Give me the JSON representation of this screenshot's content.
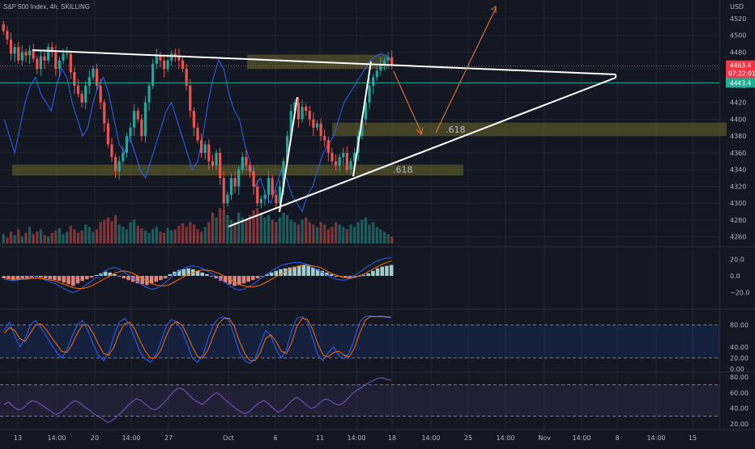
{
  "header": {
    "title": "S&P 500 Index, 4h, SKILLING"
  },
  "currency": "USD",
  "colors": {
    "background": "#131722",
    "up": "#26a69a",
    "down": "#ef5350",
    "price_tag": "#f23645",
    "level_line": "#22ab94",
    "zone": "#6b6a2c",
    "trendline": "#ffffff",
    "arrow": "#f57c37",
    "blue_line": "#2962ff"
  },
  "chart_data": [
    {
      "type": "candlestick",
      "panel": "price",
      "title": "S&P 500 Index, 4h, SKILLING",
      "x_tick_labels": [
        "13",
        "14:00",
        "20",
        "14:00",
        "27",
        "Oct",
        "6",
        "11",
        "14:00",
        "18",
        "14:00",
        "25",
        "14:00",
        "Nov",
        "14:00",
        "8",
        "14:00",
        "15"
      ],
      "y_ticks": [
        4520,
        4500,
        4480,
        4460,
        4440,
        4420,
        4400,
        4380,
        4360,
        4340,
        4320,
        4300,
        4280,
        4260
      ],
      "ylim": [
        4253,
        4542
      ],
      "closes": [
        4505,
        4495,
        4478,
        4486,
        4470,
        4480,
        4476,
        4482,
        4472,
        4460,
        4475,
        4470,
        4486,
        4480,
        4460,
        4470,
        4478,
        4478,
        4456,
        4440,
        4430,
        4420,
        4440,
        4450,
        4460,
        4440,
        4420,
        4395,
        4370,
        4355,
        4338,
        4350,
        4360,
        4380,
        4390,
        4410,
        4400,
        4380,
        4420,
        4440,
        4466,
        4476,
        4470,
        4460,
        4470,
        4478,
        4476,
        4470,
        4460,
        4440,
        4410,
        4390,
        4375,
        4360,
        4370,
        4350,
        4345,
        4360,
        4330,
        4300,
        4310,
        4330,
        4320,
        4340,
        4355,
        4345,
        4338,
        4320,
        4300,
        4305,
        4310,
        4330,
        4310,
        4300,
        4320,
        4350,
        4380,
        4410,
        4420,
        4400,
        4415,
        4410,
        4400,
        4390,
        4395,
        4380,
        4375,
        4360,
        4350,
        4345,
        4355,
        4360,
        4340,
        4350,
        4360,
        4380,
        4400,
        4420,
        4440,
        4450,
        4458,
        4466,
        4470,
        4474,
        4463.4
      ],
      "volume": [
        8,
        5,
        10,
        7,
        12,
        6,
        9,
        14,
        8,
        10,
        12,
        7,
        6,
        9,
        11,
        13,
        8,
        10,
        15,
        12,
        9,
        11,
        16,
        14,
        10,
        12,
        18,
        20,
        22,
        19,
        24,
        16,
        14,
        12,
        18,
        20,
        15,
        13,
        11,
        9,
        12,
        14,
        10,
        9,
        13,
        11,
        12,
        15,
        17,
        14,
        18,
        16,
        12,
        10,
        14,
        18,
        26,
        22,
        30,
        28,
        24,
        20,
        18,
        26,
        22,
        20,
        24,
        28,
        30,
        26,
        22,
        24,
        20,
        18,
        22,
        26,
        24,
        20,
        18,
        16,
        20,
        22,
        18,
        16,
        14,
        18,
        16,
        12,
        14,
        18,
        16,
        14,
        12,
        16,
        14,
        18,
        20,
        22,
        16,
        18,
        14,
        12,
        10,
        8,
        6
      ],
      "overlay_line": [
        4400,
        4380,
        4360,
        4390,
        4420,
        4440,
        4450,
        4430,
        4420,
        4410,
        4440,
        4460,
        4450,
        4420,
        4400,
        4380,
        4390,
        4420,
        4440,
        4450,
        4430,
        4400,
        4370,
        4360,
        4380,
        4360,
        4340,
        4330,
        4350,
        4370,
        4390,
        4410,
        4420,
        4400,
        4380,
        4360,
        4340,
        4350,
        4380,
        4420,
        4450,
        4470,
        4460,
        4430,
        4410,
        4400,
        4370,
        4350,
        4320,
        4330,
        4310,
        4300,
        4320,
        4340,
        4330,
        4310,
        4300,
        4290,
        4310,
        4320,
        4340,
        4360,
        4370,
        4380,
        4400,
        4420,
        4430,
        4440,
        4450,
        4460,
        4470,
        4475,
        4478,
        4476,
        4470
      ],
      "current_price": 4463.4,
      "countdown": "07:22:01",
      "level_price": 4443.4,
      "annotations": [
        ".618",
        ".618"
      ]
    },
    {
      "type": "histogram",
      "panel": "macd",
      "y_ticks": [
        "20.0",
        "0.0",
        "−20.0"
      ],
      "ylim": [
        -28,
        28
      ],
      "histogram": [
        -3,
        -4,
        -5,
        -4,
        -3,
        -4,
        -2,
        -1,
        -2,
        -3,
        -4,
        -5,
        -6,
        -8,
        -10,
        -12,
        -9,
        -6,
        -4,
        -2,
        1,
        3,
        5,
        4,
        2,
        -1,
        -3,
        -5,
        -7,
        -9,
        -10,
        -11,
        -9,
        -7,
        -5,
        -3,
        2,
        5,
        7,
        8,
        9,
        8,
        6,
        4,
        2,
        -1,
        -3,
        -6,
        -8,
        -10,
        -12,
        -11,
        -9,
        -7,
        -5,
        -3,
        -1,
        2,
        4,
        6,
        8,
        9,
        10,
        11,
        12,
        13,
        12,
        10,
        8,
        6,
        4,
        2,
        0,
        -1,
        -2,
        -3,
        -2,
        -1,
        1,
        3,
        6,
        9,
        11,
        12,
        13
      ],
      "macd": [
        -4,
        -5,
        -6,
        -5,
        -4,
        -3,
        -2,
        -2,
        -3,
        -5,
        -7,
        -9,
        -12,
        -15,
        -18,
        -20,
        -18,
        -14,
        -10,
        -6,
        -2,
        2,
        6,
        9,
        10,
        8,
        5,
        1,
        -3,
        -7,
        -11,
        -14,
        -16,
        -15,
        -12,
        -8,
        -3,
        2,
        6,
        9,
        11,
        12,
        11,
        9,
        6,
        3,
        0,
        -4,
        -8,
        -12,
        -15,
        -17,
        -16,
        -13,
        -10,
        -6,
        -2,
        2,
        6,
        9,
        12,
        14,
        15,
        16,
        16,
        15,
        13,
        10,
        7,
        4,
        1,
        -2,
        -4,
        -5,
        -5,
        -3,
        0,
        4,
        8,
        12,
        15,
        18,
        20,
        21,
        22
      ],
      "signal": [
        -2,
        -3,
        -4,
        -4,
        -4,
        -4,
        -3,
        -3,
        -3,
        -4,
        -5,
        -6,
        -8,
        -10,
        -12,
        -14,
        -15,
        -15,
        -14,
        -12,
        -9,
        -6,
        -3,
        0,
        3,
        5,
        6,
        5,
        3,
        0,
        -3,
        -6,
        -9,
        -11,
        -12,
        -12,
        -10,
        -7,
        -4,
        -1,
        2,
        4,
        6,
        7,
        7,
        6,
        4,
        2,
        -1,
        -4,
        -7,
        -10,
        -12,
        -13,
        -13,
        -12,
        -10,
        -7,
        -4,
        -1,
        2,
        5,
        8,
        10,
        12,
        13,
        13,
        12,
        11,
        9,
        6,
        3,
        1,
        -1,
        -2,
        -3,
        -2,
        0,
        2,
        5,
        8,
        11,
        14,
        16,
        18
      ]
    },
    {
      "type": "line",
      "panel": "stochastic",
      "y_ticks": [
        "80.00",
        "40.00",
        "20.00",
        "0.00"
      ],
      "ylim": [
        0,
        100
      ],
      "band": [
        20,
        80
      ],
      "k": [
        70,
        85,
        60,
        40,
        55,
        80,
        88,
        75,
        60,
        45,
        30,
        20,
        35,
        60,
        80,
        88,
        70,
        45,
        25,
        15,
        30,
        60,
        85,
        92,
        80,
        55,
        30,
        18,
        12,
        25,
        50,
        78,
        90,
        85,
        70,
        45,
        20,
        12,
        25,
        55,
        80,
        92,
        95,
        88,
        60,
        30,
        15,
        10,
        20,
        45,
        70,
        60,
        35,
        20,
        35,
        70,
        92,
        95,
        85,
        55,
        25,
        15,
        30,
        40,
        25,
        18,
        30,
        55,
        85,
        95,
        96,
        95,
        96,
        94,
        93
      ],
      "d": [
        65,
        75,
        70,
        55,
        50,
        65,
        80,
        82,
        72,
        58,
        45,
        32,
        30,
        45,
        65,
        80,
        80,
        65,
        45,
        28,
        25,
        40,
        65,
        82,
        85,
        72,
        50,
        32,
        20,
        20,
        35,
        60,
        80,
        86,
        80,
        62,
        40,
        22,
        20,
        35,
        60,
        82,
        92,
        92,
        78,
        50,
        28,
        15,
        15,
        30,
        55,
        62,
        50,
        32,
        28,
        48,
        78,
        92,
        90,
        72,
        45,
        25,
        22,
        30,
        32,
        25,
        22,
        38,
        65,
        88,
        95,
        95,
        95,
        95,
        94
      ]
    },
    {
      "type": "line",
      "panel": "rsi",
      "y_ticks": [
        "80.00",
        "60.00",
        "40.00",
        "20.00"
      ],
      "ylim": [
        16,
        82
      ],
      "band": [
        30,
        70
      ],
      "values": [
        45,
        48,
        42,
        38,
        40,
        46,
        50,
        48,
        44,
        40,
        36,
        32,
        35,
        40,
        46,
        50,
        47,
        42,
        38,
        33,
        30,
        26,
        22,
        25,
        30,
        36,
        42,
        48,
        52,
        50,
        45,
        40,
        38,
        42,
        48,
        55,
        62,
        66,
        64,
        58,
        52,
        48,
        45,
        50,
        56,
        60,
        56,
        50,
        45,
        40,
        36,
        33,
        36,
        42,
        47,
        50,
        46,
        40,
        35,
        38,
        44,
        50,
        54,
        50,
        44,
        40,
        42,
        48,
        52,
        50,
        46,
        44,
        48,
        54,
        60,
        64,
        68,
        72,
        75,
        78,
        79,
        77,
        76
      ]
    }
  ]
}
